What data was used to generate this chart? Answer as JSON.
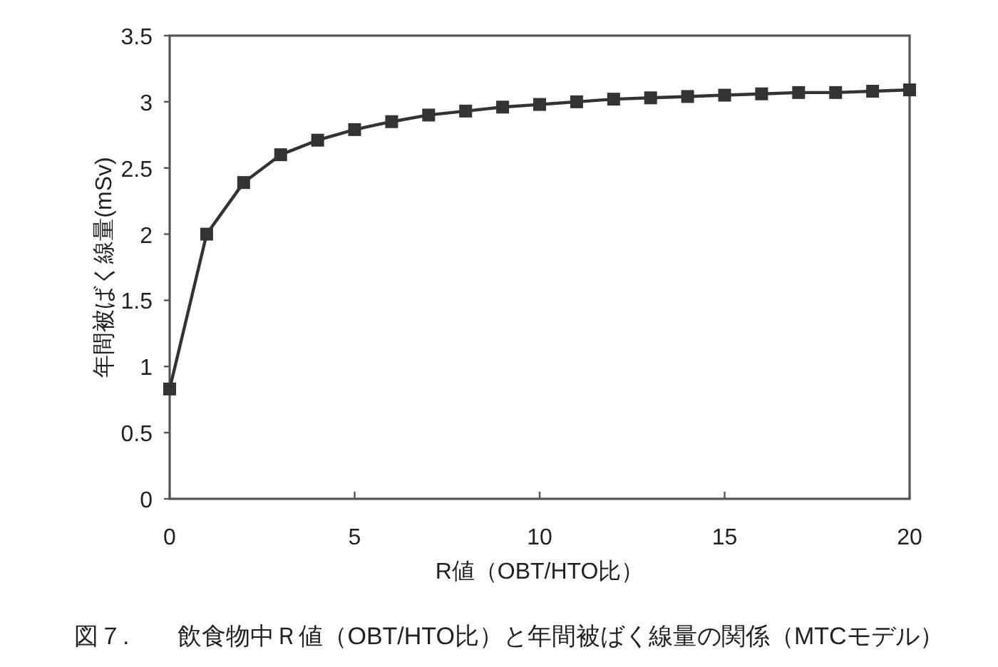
{
  "chart_data": {
    "type": "line",
    "xlabel": "R値（OBT/HTO比）",
    "ylabel": "年間被ばく線量(mSv)",
    "annotations": [
      "図７.　　飲食物中Ｒ値（OBT/HTO比）と年間被ばく線量の関係（MTCモデル）"
    ],
    "x": [
      0,
      1,
      2,
      3,
      4,
      5,
      6,
      7,
      8,
      9,
      10,
      11,
      12,
      13,
      14,
      15,
      16,
      17,
      18,
      19,
      20
    ],
    "values": [
      0.83,
      2.0,
      2.39,
      2.6,
      2.71,
      2.79,
      2.85,
      2.9,
      2.93,
      2.96,
      2.98,
      3.0,
      3.02,
      3.03,
      3.04,
      3.05,
      3.06,
      3.07,
      3.07,
      3.08,
      3.09
    ],
    "color": "#333333",
    "marker": "square",
    "line_style": "solid",
    "xlim": [
      0,
      20
    ],
    "ylim": [
      0,
      3.5
    ],
    "xticks": [
      0,
      5,
      10,
      15,
      20
    ],
    "yticks": [
      0,
      0.5,
      1,
      1.5,
      2,
      2.5,
      3,
      3.5
    ]
  }
}
